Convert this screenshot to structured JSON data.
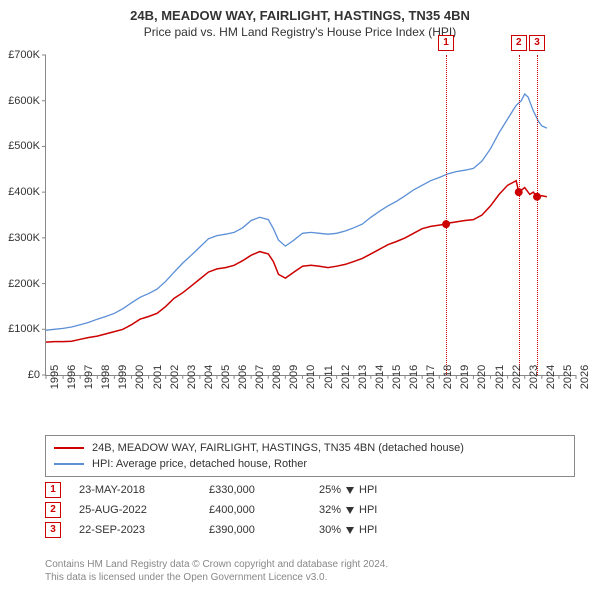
{
  "title": "24B, MEADOW WAY, FAIRLIGHT, HASTINGS, TN35 4BN",
  "subtitle": "Price paid vs. HM Land Registry's House Price Index (HPI)",
  "chart": {
    "type": "line",
    "background_color": "#ffffff",
    "grid_color": "#e0e0e0",
    "axis_color": "#888888",
    "title_fontsize": 13,
    "label_fontsize": 11,
    "xlim": [
      1995,
      2026
    ],
    "ylim": [
      0,
      700000
    ],
    "ytick_step": 100000,
    "yticks": [
      0,
      100000,
      200000,
      300000,
      400000,
      500000,
      600000,
      700000
    ],
    "ytick_labels": [
      "£0",
      "£100K",
      "£200K",
      "£300K",
      "£400K",
      "£500K",
      "£600K",
      "£700K"
    ],
    "xticks": [
      1995,
      1996,
      1997,
      1998,
      1999,
      2000,
      2001,
      2002,
      2003,
      2004,
      2005,
      2006,
      2007,
      2008,
      2009,
      2010,
      2011,
      2012,
      2013,
      2014,
      2015,
      2016,
      2017,
      2018,
      2019,
      2020,
      2021,
      2022,
      2023,
      2024,
      2025,
      2026
    ],
    "series": [
      {
        "name": "property_price",
        "label": "24B, MEADOW WAY, FAIRLIGHT, HASTINGS, TN35 4BN (detached house)",
        "color": "#cc0000",
        "line_width": 1.5,
        "marker_color": "#cc0000",
        "marker_size": 4,
        "data": [
          [
            1995.0,
            72000
          ],
          [
            1995.5,
            73000
          ],
          [
            1996.0,
            73000
          ],
          [
            1996.5,
            74000
          ],
          [
            1997.0,
            78000
          ],
          [
            1997.5,
            82000
          ],
          [
            1998.0,
            85000
          ],
          [
            1998.5,
            90000
          ],
          [
            1999.0,
            95000
          ],
          [
            1999.5,
            100000
          ],
          [
            2000.0,
            110000
          ],
          [
            2000.5,
            122000
          ],
          [
            2001.0,
            128000
          ],
          [
            2001.5,
            135000
          ],
          [
            2002.0,
            150000
          ],
          [
            2002.5,
            168000
          ],
          [
            2003.0,
            180000
          ],
          [
            2003.5,
            195000
          ],
          [
            2004.0,
            210000
          ],
          [
            2004.5,
            225000
          ],
          [
            2005.0,
            232000
          ],
          [
            2005.5,
            235000
          ],
          [
            2006.0,
            240000
          ],
          [
            2006.5,
            250000
          ],
          [
            2007.0,
            262000
          ],
          [
            2007.5,
            270000
          ],
          [
            2008.0,
            265000
          ],
          [
            2008.3,
            248000
          ],
          [
            2008.6,
            220000
          ],
          [
            2009.0,
            212000
          ],
          [
            2009.5,
            225000
          ],
          [
            2010.0,
            238000
          ],
          [
            2010.5,
            240000
          ],
          [
            2011.0,
            238000
          ],
          [
            2011.5,
            235000
          ],
          [
            2012.0,
            238000
          ],
          [
            2012.5,
            242000
          ],
          [
            2013.0,
            248000
          ],
          [
            2013.5,
            255000
          ],
          [
            2014.0,
            265000
          ],
          [
            2014.5,
            275000
          ],
          [
            2015.0,
            285000
          ],
          [
            2015.5,
            292000
          ],
          [
            2016.0,
            300000
          ],
          [
            2016.5,
            310000
          ],
          [
            2017.0,
            320000
          ],
          [
            2017.5,
            325000
          ],
          [
            2018.0,
            328000
          ],
          [
            2018.4,
            330000
          ],
          [
            2018.5,
            332000
          ],
          [
            2019.0,
            335000
          ],
          [
            2019.5,
            338000
          ],
          [
            2020.0,
            340000
          ],
          [
            2020.5,
            350000
          ],
          [
            2021.0,
            370000
          ],
          [
            2021.5,
            395000
          ],
          [
            2022.0,
            415000
          ],
          [
            2022.5,
            425000
          ],
          [
            2022.65,
            400000
          ],
          [
            2023.0,
            410000
          ],
          [
            2023.3,
            395000
          ],
          [
            2023.5,
            400000
          ],
          [
            2023.72,
            390000
          ],
          [
            2024.0,
            392000
          ],
          [
            2024.3,
            390000
          ]
        ],
        "markers": [
          [
            2018.4,
            330000
          ],
          [
            2022.65,
            400000
          ],
          [
            2023.72,
            390000
          ]
        ]
      },
      {
        "name": "hpi",
        "label": "HPI: Average price, detached house, Rother",
        "color": "#5b8fd6",
        "line_width": 1.3,
        "data": [
          [
            1995.0,
            98000
          ],
          [
            1995.5,
            100000
          ],
          [
            1996.0,
            102000
          ],
          [
            1996.5,
            105000
          ],
          [
            1997.0,
            110000
          ],
          [
            1997.5,
            115000
          ],
          [
            1998.0,
            122000
          ],
          [
            1998.5,
            128000
          ],
          [
            1999.0,
            135000
          ],
          [
            1999.5,
            145000
          ],
          [
            2000.0,
            158000
          ],
          [
            2000.5,
            170000
          ],
          [
            2001.0,
            178000
          ],
          [
            2001.5,
            188000
          ],
          [
            2002.0,
            205000
          ],
          [
            2002.5,
            225000
          ],
          [
            2003.0,
            245000
          ],
          [
            2003.5,
            262000
          ],
          [
            2004.0,
            280000
          ],
          [
            2004.5,
            298000
          ],
          [
            2005.0,
            305000
          ],
          [
            2005.5,
            308000
          ],
          [
            2006.0,
            312000
          ],
          [
            2006.5,
            322000
          ],
          [
            2007.0,
            338000
          ],
          [
            2007.5,
            345000
          ],
          [
            2008.0,
            340000
          ],
          [
            2008.3,
            320000
          ],
          [
            2008.6,
            295000
          ],
          [
            2009.0,
            282000
          ],
          [
            2009.5,
            295000
          ],
          [
            2010.0,
            310000
          ],
          [
            2010.5,
            312000
          ],
          [
            2011.0,
            310000
          ],
          [
            2011.5,
            308000
          ],
          [
            2012.0,
            310000
          ],
          [
            2012.5,
            315000
          ],
          [
            2013.0,
            322000
          ],
          [
            2013.5,
            330000
          ],
          [
            2014.0,
            345000
          ],
          [
            2014.5,
            358000
          ],
          [
            2015.0,
            370000
          ],
          [
            2015.5,
            380000
          ],
          [
            2016.0,
            392000
          ],
          [
            2016.5,
            405000
          ],
          [
            2017.0,
            415000
          ],
          [
            2017.5,
            425000
          ],
          [
            2018.0,
            432000
          ],
          [
            2018.5,
            440000
          ],
          [
            2019.0,
            445000
          ],
          [
            2019.5,
            448000
          ],
          [
            2020.0,
            452000
          ],
          [
            2020.5,
            468000
          ],
          [
            2021.0,
            495000
          ],
          [
            2021.5,
            530000
          ],
          [
            2022.0,
            560000
          ],
          [
            2022.5,
            590000
          ],
          [
            2022.8,
            600000
          ],
          [
            2023.0,
            615000
          ],
          [
            2023.2,
            608000
          ],
          [
            2023.5,
            578000
          ],
          [
            2023.8,
            555000
          ],
          [
            2024.0,
            545000
          ],
          [
            2024.3,
            540000
          ]
        ]
      }
    ],
    "event_markers": [
      {
        "num": "1",
        "x": 2018.4
      },
      {
        "num": "2",
        "x": 2022.65
      },
      {
        "num": "3",
        "x": 2023.72
      }
    ]
  },
  "legend": {
    "border_color": "#888888",
    "items": [
      {
        "color": "#cc0000",
        "label": "24B, MEADOW WAY, FAIRLIGHT, HASTINGS, TN35 4BN (detached house)"
      },
      {
        "color": "#5b8fd6",
        "label": "HPI: Average price, detached house, Rother"
      }
    ]
  },
  "events": [
    {
      "num": "1",
      "date": "23-MAY-2018",
      "price": "£330,000",
      "pct": "25%",
      "direction": "down",
      "ref": "HPI"
    },
    {
      "num": "2",
      "date": "25-AUG-2022",
      "price": "£400,000",
      "pct": "32%",
      "direction": "down",
      "ref": "HPI"
    },
    {
      "num": "3",
      "date": "22-SEP-2023",
      "price": "£390,000",
      "pct": "30%",
      "direction": "down",
      "ref": "HPI"
    }
  ],
  "footer": {
    "line1": "Contains HM Land Registry data © Crown copyright and database right 2024.",
    "line2": "This data is licensed under the Open Government Licence v3.0."
  },
  "colors": {
    "marker_border": "#cc0000",
    "footer_text": "#888888",
    "text": "#333333"
  }
}
